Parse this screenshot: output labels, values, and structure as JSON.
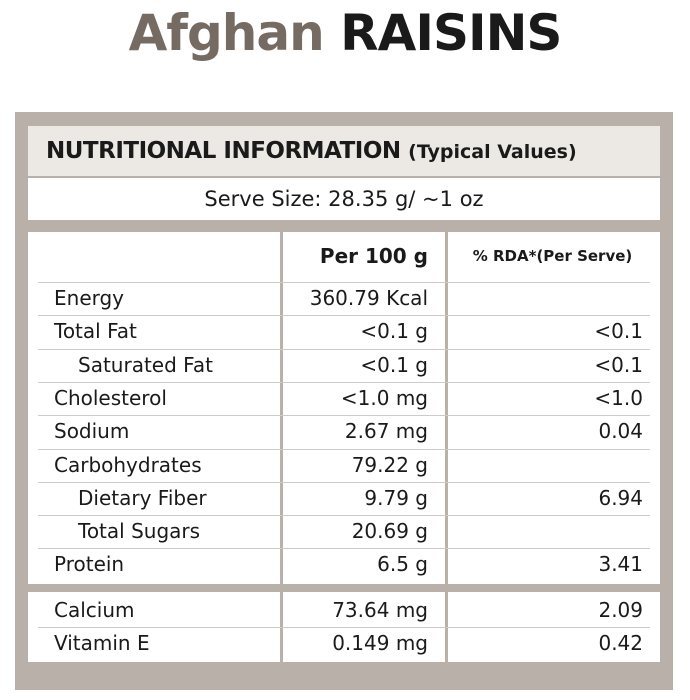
{
  "title": {
    "brand": "Afghan",
    "product": "RAISINS"
  },
  "panel": {
    "heading": "NUTRITIONAL INFORMATION",
    "heading_note": "(Typical Values)",
    "serve_size": "Serve Size: 28.35 g/ ~1 oz"
  },
  "table": {
    "columns": [
      "Per 100 g",
      "% RDA*(Per Serve)"
    ],
    "sections": [
      [
        {
          "label": "Energy",
          "per_100g": "360.79 Kcal",
          "rda": null,
          "indent": false
        },
        {
          "label": "Total Fat",
          "per_100g": "<0.1 g",
          "rda": "<0.1",
          "indent": false
        },
        {
          "label": "Saturated Fat",
          "per_100g": "<0.1 g",
          "rda": "<0.1",
          "indent": true
        },
        {
          "label": "Cholesterol",
          "per_100g": "<1.0 mg",
          "rda": "<1.0",
          "indent": false
        },
        {
          "label": "Sodium",
          "per_100g": "2.67 mg",
          "rda": "0.04",
          "indent": false
        },
        {
          "label": "Carbohydrates",
          "per_100g": "79.22 g",
          "rda": null,
          "indent": false
        },
        {
          "label": "Dietary Fiber",
          "per_100g": "9.79 g",
          "rda": "6.94",
          "indent": true
        },
        {
          "label": "Total Sugars",
          "per_100g": "20.69 g",
          "rda": null,
          "indent": true
        },
        {
          "label": "Protein",
          "per_100g": "6.5 g",
          "rda": "3.41",
          "indent": false
        }
      ],
      [
        {
          "label": "Calcium",
          "per_100g": "73.64 mg",
          "rda": "2.09",
          "indent": false
        },
        {
          "label": "Vitamin E",
          "per_100g": "0.149 mg",
          "rda": "0.42",
          "indent": false
        }
      ]
    ]
  }
}
